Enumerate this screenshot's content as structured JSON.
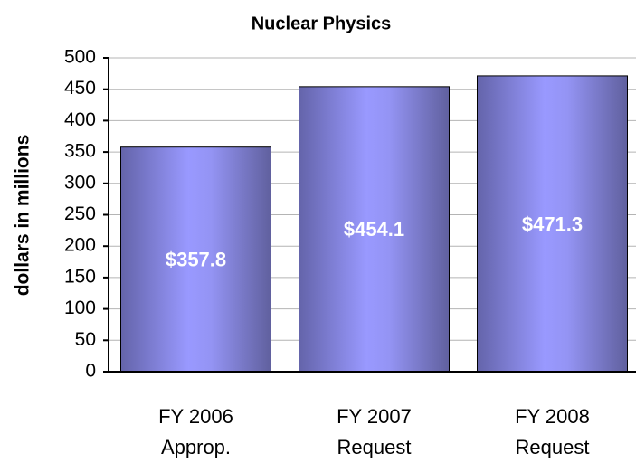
{
  "chart_data": {
    "type": "bar",
    "title": "Nuclear Physics",
    "y_label": "dollars in millions",
    "categories": [
      "FY 2006 Approp.",
      "FY 2007 Request",
      "FY 2008 Request"
    ],
    "values": [
      357.8,
      454.1,
      471.3
    ],
    "value_labels": [
      "$357.8",
      "$454.1",
      "$471.3"
    ],
    "color": "#9999ff",
    "ylim": [
      0,
      500
    ],
    "yticks": [
      0,
      50,
      100,
      150,
      200,
      250,
      300,
      350,
      400,
      450,
      500
    ],
    "grid": true
  }
}
